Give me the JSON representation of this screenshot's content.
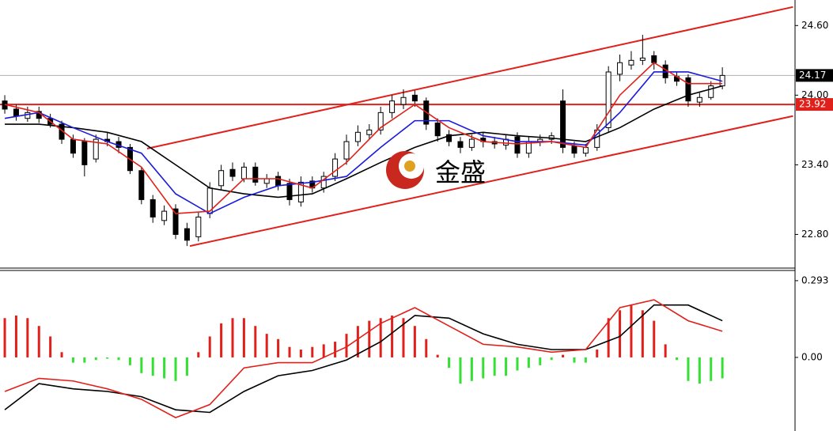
{
  "chart_data": [
    {
      "type": "candlestick",
      "xlim": [
        -0.42,
        69.38
      ],
      "ylim": [
        22.51,
        24.82
      ],
      "yticks": [
        {
          "value": 24.6,
          "label": "24.60"
        },
        {
          "value": 24.0,
          "label": "24.00"
        },
        {
          "value": 23.4,
          "label": "23.40"
        },
        {
          "value": 22.8,
          "label": "22.80"
        }
      ],
      "open": [
        23.95,
        23.88,
        23.8,
        23.86,
        23.8,
        23.75,
        23.62,
        23.6,
        23.45,
        23.62,
        23.6,
        23.55,
        23.35,
        23.1,
        22.92,
        23.02,
        22.85,
        22.78,
        22.98,
        23.22,
        23.36,
        23.28,
        23.38,
        23.24,
        23.3,
        23.24,
        23.08,
        23.26,
        23.2,
        23.3,
        23.45,
        23.6,
        23.66,
        23.7,
        23.85,
        23.92,
        24.0,
        23.95,
        23.76,
        23.66,
        23.6,
        23.55,
        23.63,
        23.6,
        23.57,
        23.64,
        23.5,
        23.6,
        23.62,
        23.95,
        23.56,
        23.5,
        23.55,
        23.72,
        24.18,
        24.26,
        24.3,
        24.34,
        24.26,
        24.16,
        24.15,
        23.94,
        23.98,
        24.08
      ],
      "high": [
        24.0,
        23.92,
        23.9,
        23.9,
        23.84,
        23.78,
        23.66,
        23.63,
        23.66,
        23.68,
        23.64,
        23.58,
        23.38,
        23.14,
        23.05,
        23.06,
        22.9,
        22.99,
        23.25,
        23.4,
        23.42,
        23.42,
        23.42,
        23.32,
        23.34,
        23.28,
        23.3,
        23.3,
        23.34,
        23.5,
        23.66,
        23.74,
        23.75,
        23.9,
        24.0,
        24.05,
        24.04,
        23.98,
        23.8,
        23.7,
        23.64,
        23.66,
        23.68,
        23.64,
        23.66,
        23.68,
        23.64,
        23.66,
        23.68,
        24.05,
        23.6,
        23.58,
        23.75,
        24.25,
        24.35,
        24.38,
        24.52,
        24.38,
        24.3,
        24.2,
        24.18,
        24.02,
        24.12,
        24.24
      ],
      "low": [
        23.84,
        23.78,
        23.77,
        23.76,
        23.72,
        23.58,
        23.46,
        23.3,
        23.42,
        23.56,
        23.5,
        23.32,
        23.06,
        22.9,
        22.88,
        22.76,
        22.7,
        22.74,
        22.94,
        23.18,
        23.26,
        23.25,
        23.22,
        23.2,
        23.18,
        23.05,
        23.04,
        23.16,
        23.16,
        23.26,
        23.4,
        23.56,
        23.62,
        23.66,
        23.8,
        23.88,
        23.9,
        23.7,
        23.6,
        23.56,
        23.5,
        23.52,
        23.55,
        23.54,
        23.53,
        23.46,
        23.46,
        23.56,
        23.58,
        23.5,
        23.46,
        23.47,
        23.52,
        23.68,
        24.12,
        24.22,
        24.26,
        24.22,
        24.1,
        24.08,
        23.9,
        23.9,
        23.96,
        24.05
      ],
      "close": [
        23.88,
        23.82,
        23.85,
        23.8,
        23.75,
        23.62,
        23.5,
        23.4,
        23.62,
        23.6,
        23.55,
        23.35,
        23.1,
        22.95,
        23.0,
        22.8,
        22.75,
        22.95,
        23.2,
        23.35,
        23.3,
        23.38,
        23.25,
        23.28,
        23.22,
        23.1,
        23.25,
        23.2,
        23.3,
        23.45,
        23.6,
        23.68,
        23.7,
        23.85,
        23.95,
        23.98,
        23.95,
        23.75,
        23.65,
        23.6,
        23.55,
        23.62,
        23.6,
        23.58,
        23.62,
        23.5,
        23.6,
        23.62,
        23.65,
        23.55,
        23.5,
        23.55,
        23.7,
        24.2,
        24.28,
        24.3,
        24.32,
        24.28,
        24.15,
        24.12,
        23.95,
        23.98,
        24.08,
        24.17
      ],
      "up_color": "#ffffff",
      "down_color": "#000000",
      "series": [
        {
          "color": "#000000",
          "x": [
            0,
            3,
            6,
            9,
            12,
            15,
            18,
            21,
            24,
            27,
            30,
            33,
            36,
            39,
            42,
            45,
            48,
            51,
            54,
            57,
            60,
            63
          ],
          "values": [
            23.75,
            23.75,
            23.72,
            23.68,
            23.6,
            23.4,
            23.2,
            23.15,
            23.12,
            23.15,
            23.28,
            23.42,
            23.55,
            23.65,
            23.68,
            23.65,
            23.63,
            23.6,
            23.72,
            23.88,
            24.0,
            24.08
          ]
        },
        {
          "color": "#1a1adc",
          "x": [
            0,
            3,
            6,
            9,
            12,
            15,
            18,
            21,
            24,
            27,
            30,
            33,
            36,
            39,
            42,
            45,
            48,
            51,
            54,
            57,
            60,
            63
          ],
          "values": [
            23.8,
            23.85,
            23.72,
            23.6,
            23.5,
            23.15,
            22.98,
            23.12,
            23.22,
            23.25,
            23.3,
            23.55,
            23.78,
            23.78,
            23.65,
            23.6,
            23.6,
            23.57,
            23.85,
            24.2,
            24.2,
            24.12
          ]
        },
        {
          "color": "#e0201a",
          "x": [
            0,
            3,
            6,
            9,
            12,
            15,
            18,
            21,
            24,
            27,
            30,
            33,
            36,
            39,
            42,
            45,
            48,
            51,
            54,
            57,
            60,
            63
          ],
          "values": [
            23.92,
            23.85,
            23.62,
            23.58,
            23.38,
            22.98,
            23.0,
            23.28,
            23.28,
            23.2,
            23.42,
            23.72,
            23.92,
            23.72,
            23.6,
            23.58,
            23.6,
            23.55,
            24.0,
            24.28,
            24.1,
            24.1
          ]
        }
      ],
      "trendlines": [
        {
          "color": "#e0201a",
          "x": [
            12.5,
            69.2
          ],
          "values": [
            23.54,
            24.76
          ]
        },
        {
          "color": "#e0201a",
          "x": [
            16.25,
            69.2
          ],
          "values": [
            22.7,
            23.82
          ]
        }
      ],
      "price_labels": [
        {
          "value": 24.17,
          "label": "24.17",
          "color": "#000000",
          "line_color": "#b0b0b0"
        },
        {
          "value": 23.92,
          "label": "23.92",
          "color": "#e0201a",
          "line_color": "#e0201a"
        }
      ],
      "watermark": "金盛"
    },
    {
      "type": "macd",
      "xlim": [
        -0.42,
        69.38
      ],
      "ylim": [
        -0.281,
        0.332
      ],
      "yticks": [
        {
          "value": 0.293,
          "label": "0.293"
        },
        {
          "value": 0,
          "label": "0.00"
        }
      ],
      "values": [
        0.15,
        0.16,
        0.15,
        0.12,
        0.08,
        0.02,
        -0.02,
        -0.02,
        -0.01,
        -0.005,
        -0.01,
        -0.03,
        -0.06,
        -0.07,
        -0.08,
        -0.09,
        -0.07,
        0.02,
        0.08,
        0.13,
        0.15,
        0.15,
        0.12,
        0.09,
        0.07,
        0.04,
        0.03,
        0.04,
        0.05,
        0.06,
        0.09,
        0.12,
        0.14,
        0.15,
        0.16,
        0.15,
        0.12,
        0.07,
        0.01,
        -0.04,
        -0.1,
        -0.09,
        -0.08,
        -0.07,
        -0.07,
        -0.05,
        -0.04,
        -0.03,
        -0.01,
        0.01,
        -0.02,
        -0.02,
        0.03,
        0.15,
        0.18,
        0.2,
        0.18,
        0.14,
        0.05,
        -0.01,
        -0.09,
        -0.1,
        -0.09,
        -0.08
      ],
      "positive_color": "#e0201a",
      "negative_color": "#33e033",
      "series": [
        {
          "color": "#000000",
          "x": [
            0,
            3,
            6,
            9,
            12,
            15,
            18,
            21,
            24,
            27,
            30,
            33,
            36,
            39,
            42,
            45,
            48,
            51,
            54,
            57,
            60,
            63
          ],
          "values": [
            -0.2,
            -0.1,
            -0.12,
            -0.13,
            -0.15,
            -0.2,
            -0.21,
            -0.13,
            -0.07,
            -0.05,
            -0.01,
            0.06,
            0.16,
            0.15,
            0.09,
            0.05,
            0.03,
            0.03,
            0.08,
            0.2,
            0.2,
            0.14
          ]
        },
        {
          "color": "#e0201a",
          "x": [
            0,
            3,
            6,
            9,
            12,
            15,
            18,
            21,
            24,
            27,
            30,
            33,
            36,
            39,
            42,
            45,
            48,
            51,
            54,
            57,
            60,
            63
          ],
          "values": [
            -0.13,
            -0.08,
            -0.09,
            -0.12,
            -0.16,
            -0.23,
            -0.18,
            -0.04,
            -0.02,
            -0.02,
            0.04,
            0.13,
            0.19,
            0.12,
            0.05,
            0.04,
            0.02,
            0.03,
            0.19,
            0.22,
            0.14,
            0.1
          ]
        }
      ]
    }
  ]
}
